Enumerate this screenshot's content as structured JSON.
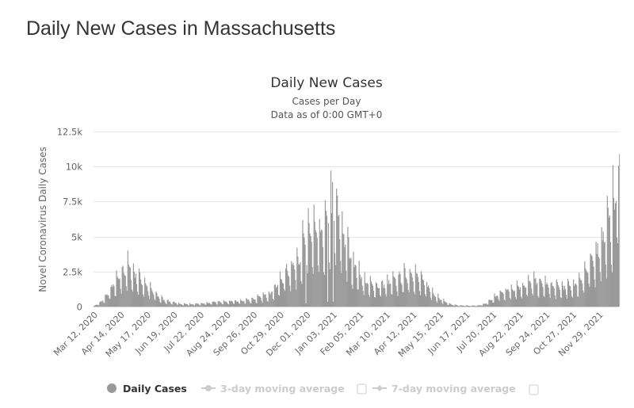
{
  "page": {
    "title": "Daily New Cases in Massachusetts"
  },
  "chart_data": {
    "type": "bar",
    "title": "Daily New Cases",
    "subtitle_lines": [
      "Cases per Day",
      "Data as of 0:00 GMT+0"
    ],
    "ylabel": "Novel Coronavirus Daily Cases",
    "xlabel": "",
    "ylim": [
      0,
      12500
    ],
    "yticks": [
      {
        "value": 0,
        "label": "0"
      },
      {
        "value": 2500,
        "label": "2.5k"
      },
      {
        "value": 5000,
        "label": "5k"
      },
      {
        "value": 7500,
        "label": "7.5k"
      },
      {
        "value": 10000,
        "label": "10k"
      },
      {
        "value": 12500,
        "label": "12.5k"
      }
    ],
    "grid": true,
    "x_start_date": "Mar 12, 2020",
    "x_days_total": 652,
    "xticks": [
      {
        "day": 0,
        "label": "Mar 12, 2020"
      },
      {
        "day": 33,
        "label": "Apr 14, 2020"
      },
      {
        "day": 66,
        "label": "May 17, 2020"
      },
      {
        "day": 99,
        "label": "Jun 19, 2020"
      },
      {
        "day": 132,
        "label": "Jul 22, 2020"
      },
      {
        "day": 165,
        "label": "Aug 24, 2020"
      },
      {
        "day": 198,
        "label": "Sep 26, 2020"
      },
      {
        "day": 231,
        "label": "Oct 29, 2020"
      },
      {
        "day": 264,
        "label": "Dec 01, 2020"
      },
      {
        "day": 297,
        "label": "Jan 03, 2021"
      },
      {
        "day": 330,
        "label": "Feb 05, 2021"
      },
      {
        "day": 363,
        "label": "Mar 10, 2021"
      },
      {
        "day": 396,
        "label": "Apr 12, 2021"
      },
      {
        "day": 429,
        "label": "May 15, 2021"
      },
      {
        "day": 462,
        "label": "Jun 17, 2021"
      },
      {
        "day": 495,
        "label": "Jul 20, 2021"
      },
      {
        "day": 528,
        "label": "Aug 22, 2021"
      },
      {
        "day": 561,
        "label": "Sep 24, 2021"
      },
      {
        "day": 594,
        "label": "Oct 27, 2021"
      },
      {
        "day": 627,
        "label": "Nov 29, 2021"
      }
    ],
    "series": [
      {
        "name": "Daily Cases",
        "color": "#999999",
        "visible": true,
        "anchor_points_day_value": [
          [
            0,
            50
          ],
          [
            7,
            250
          ],
          [
            14,
            600
          ],
          [
            21,
            1200
          ],
          [
            28,
            1700
          ],
          [
            35,
            2200
          ],
          [
            40,
            2700
          ],
          [
            45,
            2500
          ],
          [
            52,
            2100
          ],
          [
            59,
            1800
          ],
          [
            66,
            1400
          ],
          [
            73,
            1000
          ],
          [
            80,
            700
          ],
          [
            87,
            450
          ],
          [
            94,
            350
          ],
          [
            101,
            250
          ],
          [
            110,
            180
          ],
          [
            120,
            170
          ],
          [
            130,
            200
          ],
          [
            140,
            250
          ],
          [
            150,
            300
          ],
          [
            160,
            330
          ],
          [
            170,
            350
          ],
          [
            180,
            380
          ],
          [
            190,
            450
          ],
          [
            200,
            550
          ],
          [
            210,
            700
          ],
          [
            220,
            1000
          ],
          [
            228,
            1500
          ],
          [
            235,
            2000
          ],
          [
            242,
            2600
          ],
          [
            250,
            3000
          ],
          [
            256,
            3600
          ],
          [
            262,
            4500
          ],
          [
            268,
            5200
          ],
          [
            275,
            5000
          ],
          [
            282,
            4600
          ],
          [
            288,
            5600
          ],
          [
            294,
            6600
          ],
          [
            300,
            6500
          ],
          [
            306,
            5600
          ],
          [
            312,
            4400
          ],
          [
            318,
            3600
          ],
          [
            324,
            2700
          ],
          [
            330,
            2200
          ],
          [
            336,
            1700
          ],
          [
            342,
            1500
          ],
          [
            350,
            1400
          ],
          [
            358,
            1450
          ],
          [
            366,
            1600
          ],
          [
            374,
            1800
          ],
          [
            382,
            2000
          ],
          [
            390,
            2200
          ],
          [
            396,
            2300
          ],
          [
            402,
            2000
          ],
          [
            408,
            1700
          ],
          [
            414,
            1400
          ],
          [
            420,
            1000
          ],
          [
            426,
            700
          ],
          [
            432,
            450
          ],
          [
            438,
            250
          ],
          [
            444,
            150
          ],
          [
            452,
            80
          ],
          [
            460,
            70
          ],
          [
            468,
            60
          ],
          [
            476,
            80
          ],
          [
            484,
            150
          ],
          [
            490,
            350
          ],
          [
            496,
            600
          ],
          [
            502,
            850
          ],
          [
            510,
            1050
          ],
          [
            518,
            1200
          ],
          [
            526,
            1350
          ],
          [
            534,
            1450
          ],
          [
            542,
            1600
          ],
          [
            548,
            1700
          ],
          [
            554,
            1550
          ],
          [
            562,
            1500
          ],
          [
            570,
            1400
          ],
          [
            578,
            1300
          ],
          [
            586,
            1350
          ],
          [
            594,
            1450
          ],
          [
            600,
            1550
          ],
          [
            606,
            2100
          ],
          [
            612,
            2500
          ],
          [
            618,
            3000
          ],
          [
            624,
            3800
          ],
          [
            630,
            4500
          ],
          [
            636,
            5200
          ],
          [
            642,
            6000
          ],
          [
            648,
            7600
          ],
          [
            652,
            10900
          ]
        ]
      },
      {
        "name": "3-day moving average",
        "color": "#cccccc",
        "visible": false
      },
      {
        "name": "7-day moving average",
        "color": "#cccccc",
        "visible": false
      }
    ],
    "legend": {
      "position": "bottom-center",
      "items": [
        {
          "label": "Daily Cases",
          "active": true
        },
        {
          "label": "3-day moving average",
          "active": false
        },
        {
          "label": "7-day moving average",
          "active": false
        }
      ]
    }
  }
}
